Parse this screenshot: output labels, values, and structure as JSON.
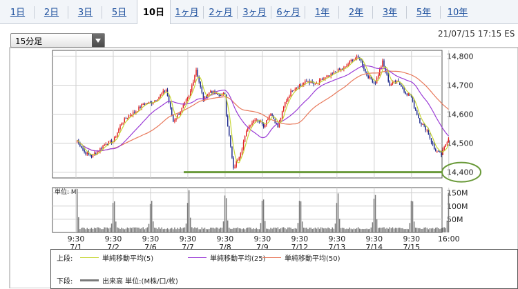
{
  "tabs": [
    {
      "label": "1日",
      "active": false
    },
    {
      "label": "2日",
      "active": false
    },
    {
      "label": "3日",
      "active": false
    },
    {
      "label": "5日",
      "active": false
    },
    {
      "label": "10日",
      "active": true
    },
    {
      "label": "1ヶ月",
      "active": false
    },
    {
      "label": "2ヶ月",
      "active": false
    },
    {
      "label": "3ヶ月",
      "active": false
    },
    {
      "label": "6ヶ月",
      "active": false
    },
    {
      "label": "1年",
      "active": false
    },
    {
      "label": "2年",
      "active": false
    },
    {
      "label": "3年",
      "active": false
    },
    {
      "label": "5年",
      "active": false
    },
    {
      "label": "10年",
      "active": false
    }
  ],
  "controls": {
    "period_label": "15分足",
    "timestamp": "21/07/15 17:15 ES"
  },
  "legend": {
    "upper_label": "上段:",
    "ma5": "単純移動平均(5)",
    "ma25": "単純移動平均(25)",
    "ma50": "単純移動平均(50)",
    "lower_label": "下段:",
    "volume": "出来高 単位:(M株/口/枚)"
  },
  "colors": {
    "up": "#e02020",
    "down": "#1e2a8c",
    "ma5": "#c7d634",
    "ma25": "#9a3bd6",
    "ma50": "#e8785a",
    "volume": "#7a7a7a",
    "marker": "#6a9a3a"
  },
  "chart_data": [
    {
      "type": "line",
      "title": "",
      "ylim": [
        14380,
        14820
      ],
      "yticks": [
        14400,
        14500,
        14600,
        14700,
        14800
      ],
      "ytick_labels": [
        "14,400",
        "14,500",
        "14,600",
        "14,700",
        "14,800"
      ],
      "x_labels": [
        {
          "time": "9:30",
          "date": "7/1",
          "session": 0
        },
        {
          "time": "9:30",
          "date": "7/2",
          "session": 1
        },
        {
          "time": "9:30",
          "date": "7/6",
          "session": 2
        },
        {
          "time": "9:30",
          "date": "7/7",
          "session": 3
        },
        {
          "time": "9:30",
          "date": "7/8",
          "session": 4
        },
        {
          "time": "9:30",
          "date": "7/9",
          "session": 5
        },
        {
          "time": "9:30",
          "date": "7/12",
          "session": 6
        },
        {
          "time": "9:30",
          "date": "7/13",
          "session": 7
        },
        {
          "time": "9:30",
          "date": "7/14",
          "session": 8
        },
        {
          "time": "9:30",
          "date": "7/15",
          "session": 9
        },
        {
          "time": "16:00",
          "date": "",
          "session": 10
        }
      ],
      "sessions": 10,
      "bars_per_session": 26,
      "session_closes": [
        [
          14510,
          14470,
          14455,
          14475,
          14500,
          14505
        ],
        [
          14515,
          14570,
          14595,
          14610,
          14635,
          14640
        ],
        [
          14640,
          14660,
          14685,
          14575,
          14610,
          14655
        ],
        [
          14660,
          14755,
          14650,
          14680,
          14665,
          14670
        ],
        [
          14600,
          14410,
          14470,
          14555,
          14585,
          14570
        ],
        [
          14560,
          14605,
          14555,
          14640,
          14685,
          14700
        ],
        [
          14700,
          14715,
          14700,
          14720,
          14730,
          14750
        ],
        [
          14750,
          14760,
          14790,
          14795,
          14735,
          14710
        ],
        [
          14710,
          14780,
          14700,
          14720,
          14680,
          14660
        ],
        [
          14640,
          14575,
          14545,
          14480,
          14460,
          14520
        ]
      ],
      "marker_level": 14400
    },
    {
      "type": "bar",
      "title": "単位: M",
      "ylabel": "単位: M",
      "ylim": [
        0,
        170
      ],
      "yticks": [
        50,
        100,
        150
      ],
      "ytick_labels": [
        "50M",
        "100M",
        "150M"
      ],
      "session_profile": {
        "base": 12,
        "open_peak": 150,
        "close_peak": 148
      },
      "session_open_peaks": [
        165,
        118,
        120,
        160,
        130,
        125,
        118,
        148,
        142,
        118
      ],
      "session_close_peaks": [
        112,
        108,
        112,
        140,
        120,
        120,
        112,
        128,
        120,
        150
      ]
    }
  ]
}
